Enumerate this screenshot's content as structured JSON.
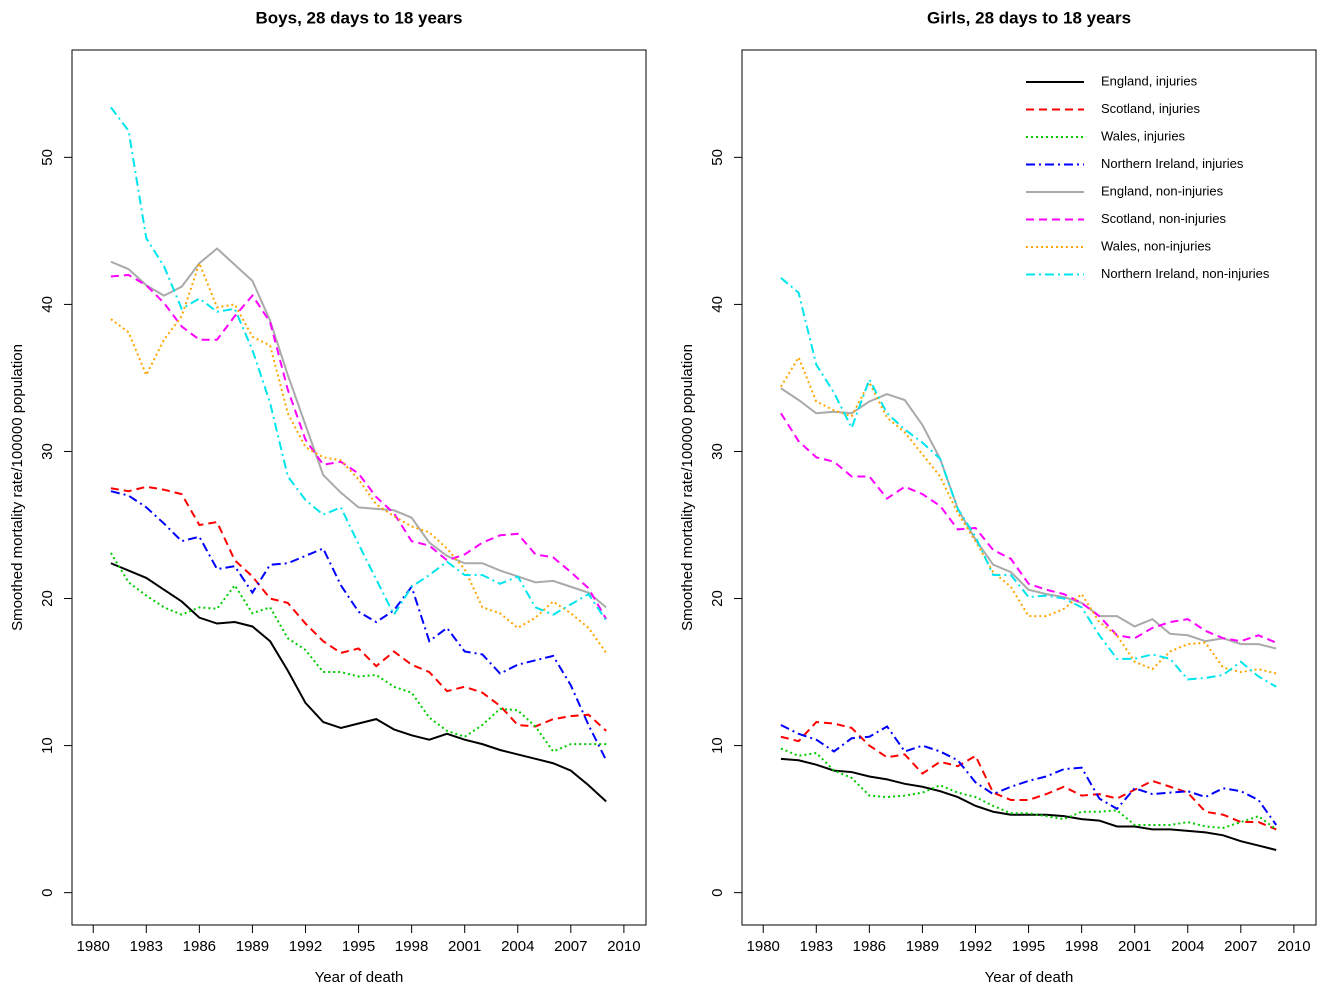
{
  "chart_data": [
    {
      "type": "line",
      "title": "Boys, 28 days to 18 years",
      "xlabel": "Year of death",
      "ylabel": "Smoothed mortality rate/100000 population",
      "x": [
        1981,
        1982,
        1983,
        1984,
        1985,
        1986,
        1987,
        1988,
        1989,
        1990,
        1991,
        1992,
        1993,
        1994,
        1995,
        1996,
        1997,
        1998,
        1999,
        2000,
        2001,
        2002,
        2003,
        2004,
        2005,
        2006,
        2007,
        2008,
        2009
      ],
      "xlim": [
        1978.8,
        2011.25
      ],
      "ylim": [
        -2.2,
        57.3
      ],
      "xticks": [
        1980,
        1983,
        1986,
        1989,
        1992,
        1995,
        1998,
        2001,
        2004,
        2007,
        2010
      ],
      "yticks": [
        0,
        10,
        20,
        30,
        40,
        50
      ],
      "series": [
        {
          "color": "#000000",
          "dash": "solid",
          "values": [
            22.4,
            21.9,
            21.4,
            20.6,
            19.8,
            18.7,
            18.3,
            18.4,
            18.1,
            17.1,
            15.1,
            12.9,
            11.6,
            11.2,
            11.5,
            11.8,
            11.1,
            10.7,
            10.4,
            10.8,
            10.4,
            10.1,
            9.7,
            9.4,
            9.1,
            8.8,
            8.3,
            7.3,
            6.2
          ]
        },
        {
          "color": "#ff0000",
          "dash": "dashed",
          "values": [
            27.5,
            27.3,
            27.6,
            27.4,
            27.1,
            25.0,
            25.2,
            22.6,
            21.5,
            20.0,
            19.7,
            18.3,
            17.1,
            16.3,
            16.6,
            15.4,
            16.4,
            15.5,
            15.0,
            13.7,
            14.0,
            13.6,
            12.7,
            11.4,
            11.3,
            11.8,
            12.0,
            12.1,
            11.0
          ]
        },
        {
          "color": "#00cc00",
          "dash": "dotted",
          "values": [
            23.1,
            21.1,
            20.2,
            19.4,
            18.9,
            19.4,
            19.3,
            20.9,
            19.0,
            19.4,
            17.3,
            16.5,
            15.0,
            15.0,
            14.7,
            14.8,
            14.0,
            13.6,
            11.9,
            11.0,
            10.6,
            11.4,
            12.5,
            12.4,
            11.3,
            9.6,
            10.1,
            10.1,
            10.1
          ]
        },
        {
          "color": "#0000ff",
          "dash": "dashdot",
          "values": [
            27.3,
            27.0,
            26.2,
            25.1,
            23.9,
            24.2,
            22.0,
            22.2,
            20.4,
            22.3,
            22.4,
            22.9,
            23.4,
            20.9,
            19.1,
            18.4,
            19.2,
            20.8,
            17.1,
            18.0,
            16.4,
            16.2,
            14.9,
            15.5,
            15.8,
            16.1,
            14.1,
            11.4,
            9.0
          ]
        },
        {
          "color": "#aaaaaa",
          "dash": "solid",
          "values": [
            42.9,
            42.4,
            41.3,
            40.6,
            41.2,
            42.8,
            43.8,
            42.7,
            41.6,
            38.9,
            35.2,
            31.8,
            28.4,
            27.2,
            26.2,
            26.1,
            26.0,
            25.5,
            23.8,
            22.9,
            22.4,
            22.4,
            21.9,
            21.5,
            21.1,
            21.2,
            20.8,
            20.4,
            19.4
          ]
        },
        {
          "color": "#ff00ff",
          "dash": "dashed",
          "values": [
            41.9,
            42.0,
            41.3,
            40.1,
            38.5,
            37.6,
            37.6,
            39.2,
            40.6,
            38.8,
            34.2,
            30.8,
            29.1,
            29.3,
            28.5,
            26.9,
            25.8,
            23.9,
            23.6,
            22.6,
            23.0,
            23.8,
            24.3,
            24.4,
            23.0,
            22.8,
            21.8,
            20.7,
            18.6
          ]
        },
        {
          "color": "#ffa500",
          "dash": "dotted",
          "values": [
            39.0,
            38.1,
            35.2,
            37.6,
            39.2,
            42.8,
            39.8,
            40.0,
            37.8,
            37.2,
            32.6,
            30.3,
            29.6,
            29.4,
            28.1,
            26.4,
            25.6,
            24.9,
            24.5,
            23.4,
            22.0,
            19.4,
            19.0,
            18.0,
            18.7,
            19.8,
            19.0,
            18.0,
            16.3
          ]
        },
        {
          "color": "#00e5ee",
          "dash": "dashdot",
          "values": [
            53.4,
            51.8,
            44.5,
            42.6,
            39.7,
            40.4,
            39.5,
            39.7,
            36.9,
            33.3,
            28.3,
            26.7,
            25.7,
            26.2,
            23.7,
            21.3,
            18.9,
            20.8,
            21.6,
            22.5,
            21.6,
            21.6,
            21.0,
            21.5,
            19.4,
            18.9,
            19.6,
            20.3,
            18.5
          ]
        }
      ]
    },
    {
      "type": "line",
      "title": "Girls, 28 days to 18 years",
      "xlabel": "Year of death",
      "ylabel": "Smoothed mortality rate/100000 population",
      "x": [
        1981,
        1982,
        1983,
        1984,
        1985,
        1986,
        1987,
        1988,
        1989,
        1990,
        1991,
        1992,
        1993,
        1994,
        1995,
        1996,
        1997,
        1998,
        1999,
        2000,
        2001,
        2002,
        2003,
        2004,
        2005,
        2006,
        2007,
        2008,
        2009
      ],
      "xlim": [
        1978.8,
        2011.25
      ],
      "ylim": [
        -2.2,
        57.3
      ],
      "xticks": [
        1980,
        1983,
        1986,
        1989,
        1992,
        1995,
        1998,
        2001,
        2004,
        2007,
        2010
      ],
      "yticks": [
        0,
        10,
        20,
        30,
        40,
        50
      ],
      "legend": "topright",
      "series": [
        {
          "name": "England, injuries",
          "color": "#000000",
          "dash": "solid",
          "values": [
            9.1,
            9.0,
            8.7,
            8.3,
            8.2,
            7.9,
            7.7,
            7.4,
            7.2,
            6.9,
            6.5,
            5.9,
            5.5,
            5.3,
            5.3,
            5.3,
            5.2,
            5.0,
            4.9,
            4.5,
            4.5,
            4.3,
            4.3,
            4.2,
            4.1,
            3.9,
            3.5,
            3.2,
            2.9
          ]
        },
        {
          "name": "Scotland, injuries",
          "color": "#ff0000",
          "dash": "dashed",
          "values": [
            10.6,
            10.3,
            11.6,
            11.5,
            11.2,
            10.0,
            9.2,
            9.4,
            8.1,
            8.9,
            8.6,
            9.3,
            6.8,
            6.3,
            6.3,
            6.7,
            7.2,
            6.6,
            6.7,
            6.4,
            7.0,
            7.6,
            7.2,
            6.8,
            5.5,
            5.3,
            4.8,
            4.8,
            4.3
          ]
        },
        {
          "name": "Wales, injuries",
          "color": "#00cc00",
          "dash": "dotted",
          "values": [
            9.8,
            9.3,
            9.5,
            8.3,
            7.8,
            6.6,
            6.5,
            6.6,
            6.8,
            7.3,
            6.8,
            6.5,
            5.9,
            5.4,
            5.4,
            5.2,
            5.0,
            5.5,
            5.5,
            5.6,
            4.6,
            4.6,
            4.6,
            4.8,
            4.5,
            4.4,
            4.8,
            5.2,
            4.3
          ]
        },
        {
          "name": "Northern Ireland, injuries",
          "color": "#0000ff",
          "dash": "dashdot",
          "values": [
            11.4,
            10.8,
            10.4,
            9.6,
            10.5,
            10.6,
            11.3,
            9.6,
            10.0,
            9.6,
            9.0,
            7.5,
            6.7,
            7.2,
            7.6,
            7.9,
            8.4,
            8.5,
            6.4,
            5.7,
            7.1,
            6.7,
            6.8,
            6.9,
            6.5,
            7.1,
            6.9,
            6.3,
            4.6
          ]
        },
        {
          "name": "England, non-injuries",
          "color": "#aaaaaa",
          "dash": "solid",
          "values": [
            34.3,
            33.5,
            32.6,
            32.7,
            32.6,
            33.4,
            33.9,
            33.5,
            31.8,
            29.5,
            26.1,
            24.0,
            22.3,
            21.8,
            20.6,
            20.3,
            20.1,
            19.7,
            18.8,
            18.8,
            18.1,
            18.6,
            17.6,
            17.5,
            17.1,
            17.3,
            16.9,
            16.9,
            16.6
          ]
        },
        {
          "name": "Scotland, non-injuries",
          "color": "#ff00ff",
          "dash": "dashed",
          "values": [
            32.6,
            30.7,
            29.6,
            29.3,
            28.3,
            28.3,
            26.8,
            27.6,
            27.1,
            26.3,
            24.7,
            24.8,
            23.3,
            22.7,
            21.0,
            20.6,
            20.3,
            19.7,
            18.8,
            17.5,
            17.3,
            18.0,
            18.4,
            18.6,
            17.8,
            17.3,
            17.1,
            17.5,
            17.0
          ]
        },
        {
          "name": "Wales, non-injuries",
          "color": "#ffa500",
          "dash": "dotted",
          "values": [
            34.4,
            36.4,
            33.4,
            32.8,
            32.4,
            34.7,
            32.3,
            31.3,
            29.8,
            28.3,
            25.8,
            23.9,
            21.8,
            20.8,
            18.8,
            18.8,
            19.3,
            20.3,
            18.4,
            17.5,
            15.7,
            15.2,
            16.4,
            16.9,
            17.0,
            15.3,
            15.0,
            15.2,
            14.9
          ]
        },
        {
          "name": "Northern Ireland, non-injuries",
          "color": "#00e5ee",
          "dash": "dashdot",
          "values": [
            41.8,
            40.8,
            35.9,
            34.0,
            31.6,
            34.9,
            32.6,
            31.5,
            30.6,
            29.5,
            26.1,
            24.2,
            21.6,
            21.6,
            20.1,
            20.2,
            20.0,
            19.4,
            17.5,
            15.9,
            15.9,
            16.2,
            15.9,
            14.5,
            14.6,
            14.8,
            15.7,
            14.7,
            14.0
          ]
        }
      ]
    }
  ]
}
